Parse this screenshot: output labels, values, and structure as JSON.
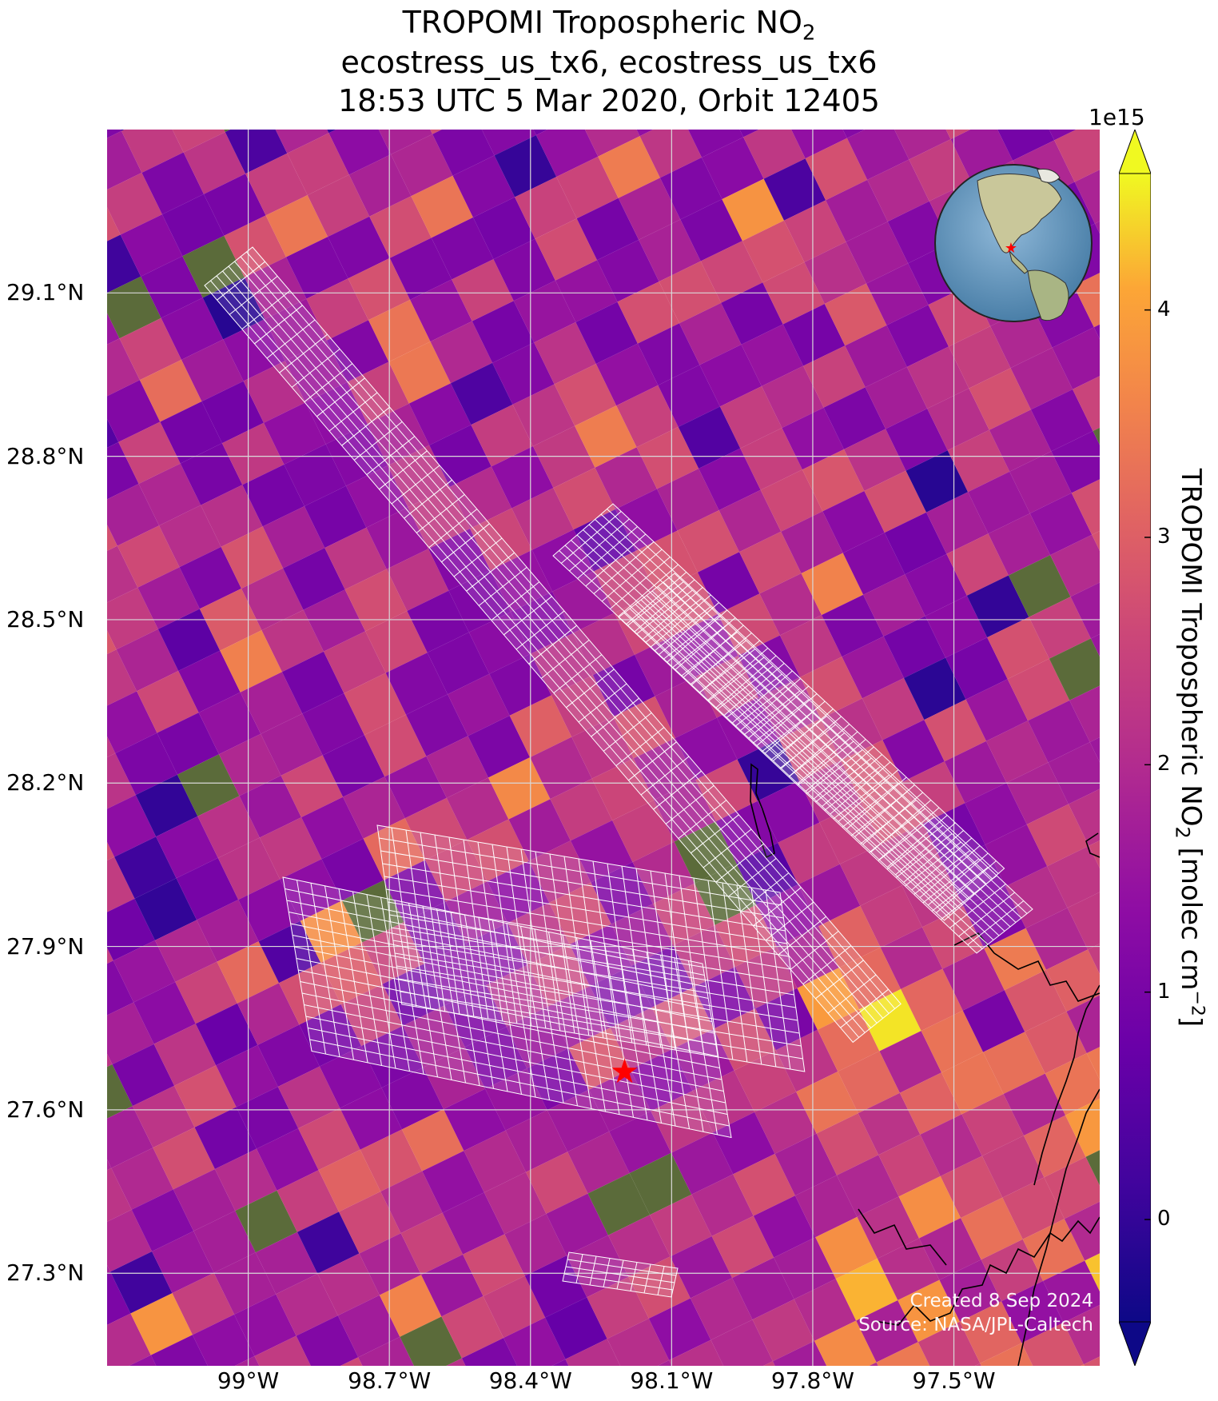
{
  "title": {
    "line1": "TROPOMI Tropospheric NO",
    "line1_sub": "2",
    "line2": "ecostress_us_tx6, ecostress_us_tx6",
    "line3": "18:53 UTC 5 Mar 2020, Orbit 12405"
  },
  "axes": {
    "lat_ticks": [
      "29.1°N",
      "28.8°N",
      "28.5°N",
      "28.2°N",
      "27.9°N",
      "27.6°N",
      "27.3°N"
    ],
    "lat_values": [
      29.1,
      28.8,
      28.5,
      28.2,
      27.9,
      27.6,
      27.3
    ],
    "lon_ticks": [
      "99°W",
      "98.7°W",
      "98.4°W",
      "98.1°W",
      "97.8°W",
      "97.5°W"
    ],
    "lon_values": [
      -99.0,
      -98.7,
      -98.4,
      -98.1,
      -97.8,
      -97.5
    ],
    "lat_range": [
      27.13,
      29.4
    ],
    "lon_range": [
      -99.3,
      -97.19
    ]
  },
  "colorbar": {
    "multiplier": "1e15",
    "label_main": "TROPOMI Tropospheric NO",
    "label_sub": "2",
    "label_tail": " [molec cm",
    "label_sup": "−2",
    "label_end": "]",
    "ticks": [
      "4",
      "3",
      "2",
      "1",
      "0"
    ],
    "tick_values": [
      4,
      3,
      2,
      1,
      0
    ],
    "range": [
      -0.45,
      4.6
    ],
    "colormap": "plasma",
    "extend": "both"
  },
  "site_marker": {
    "lat": 27.67,
    "lon": -98.2,
    "color": "#ff0000",
    "icon": "star-icon"
  },
  "inset_globe": {
    "marker_color": "#ff0000",
    "icon": "star-icon"
  },
  "credits": {
    "created": "Created 8 Sep 2024",
    "source": "Source: NASA/JPL-Caltech"
  },
  "colors": {
    "grid": "#d9d9d9",
    "footprint": "#ffffff",
    "coastline": "#000000",
    "low": "#0d0887",
    "mid": "#9c179e",
    "high": "#f0f921"
  }
}
